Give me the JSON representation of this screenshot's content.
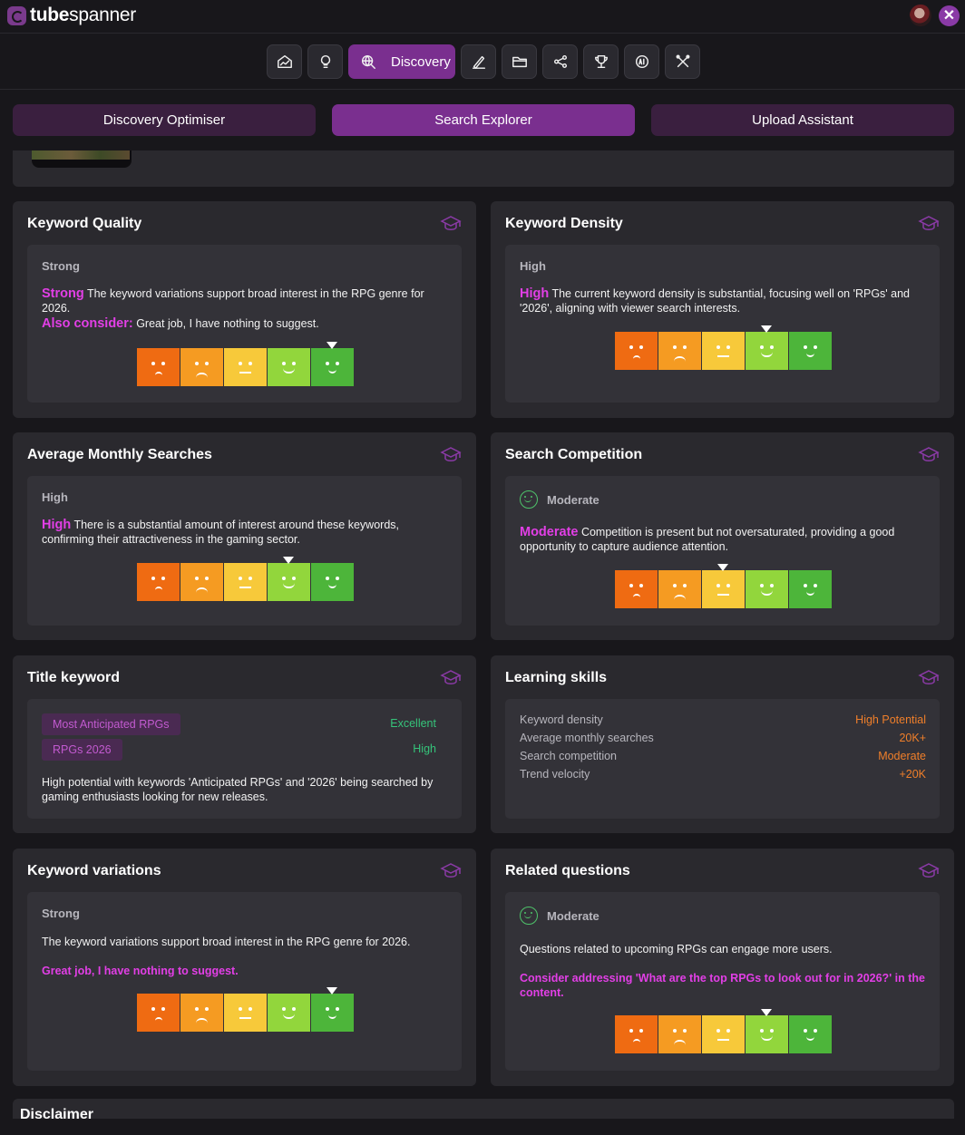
{
  "app": {
    "brand_bold": "tube",
    "brand_rest": "spanner"
  },
  "nav": {
    "active_label": "Discovery"
  },
  "subtabs": [
    "Discovery Optimiser",
    "Search Explorer",
    "Upload Assistant"
  ],
  "cards": {
    "keyword_quality": {
      "title": "Keyword Quality",
      "level": "Strong",
      "accent": "Strong",
      "text": "The keyword variations support broad interest in the RPG genre for 2026.",
      "also_label": "Also consider:",
      "also_text": "Great job, I have nothing to suggest.",
      "meter_level": 5
    },
    "keyword_density": {
      "title": "Keyword Density",
      "level": "High",
      "accent": "High",
      "text": "The current keyword density is substantial, focusing well on 'RPGs' and '2026', aligning with viewer search interests.",
      "meter_level": 4
    },
    "avg_monthly_searches": {
      "title": "Average Monthly Searches",
      "level": "High",
      "accent": "High",
      "text": "There is a substantial amount of interest around these keywords, confirming their attractiveness in the gaming sector.",
      "meter_level": 4
    },
    "search_competition": {
      "title": "Search Competition",
      "level": "Moderate",
      "accent": "Moderate",
      "text": "Competition is present but not oversaturated, providing a good opportunity to capture audience attention.",
      "meter_level": 3
    },
    "title_keyword": {
      "title": "Title keyword",
      "keywords": [
        {
          "label": "Most Anticipated RPGs",
          "rating": "Excellent"
        },
        {
          "label": "RPGs 2026",
          "rating": "High"
        }
      ],
      "text": "High potential with keywords 'Anticipated RPGs' and '2026' being searched by gaming enthusiasts looking for new releases."
    },
    "learning_skills": {
      "title": "Learning skills",
      "rows": [
        {
          "label": "Keyword density",
          "value": "High Potential"
        },
        {
          "label": "Average monthly searches",
          "value": "20K+"
        },
        {
          "label": "Search competition",
          "value": "Moderate"
        },
        {
          "label": "Trend velocity",
          "value": "+20K"
        }
      ]
    },
    "keyword_variations": {
      "title": "Keyword variations",
      "level": "Strong",
      "text": "The keyword variations support broad interest in the RPG genre for 2026.",
      "suggestion": "Great job, I have nothing to suggest.",
      "meter_level": 5
    },
    "related_questions": {
      "title": "Related questions",
      "level": "Moderate",
      "text": "Questions related to upcoming RPGs can engage more users.",
      "suggestion": "Consider addressing 'What are the top RPGs to look out for in 2026?' in the content.",
      "meter_level": 4
    }
  },
  "disclaimer": {
    "title": "Disclaimer"
  },
  "colors": {
    "accent": "#7a2f8f",
    "highlight": "#e23fe6",
    "orange_value": "#f07f2a",
    "green_rating": "#35c47a"
  }
}
